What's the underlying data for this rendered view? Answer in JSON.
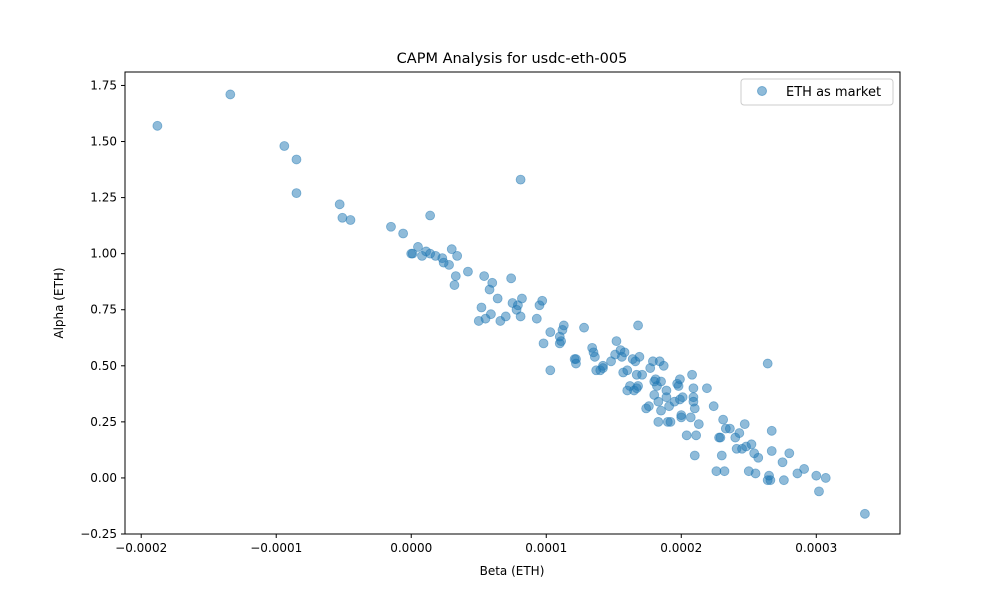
{
  "chart_data": {
    "type": "scatter",
    "title": "CAPM Analysis for usdc-eth-005",
    "xlabel": "Beta (ETH)",
    "ylabel": "Alpha (ETH)",
    "xlim": [
      -0.000212,
      0.000362
    ],
    "ylim": [
      -0.25,
      1.81
    ],
    "x_ticks": [
      -0.0002,
      -0.0001,
      0.0,
      0.0001,
      0.0002,
      0.0003
    ],
    "x_tick_labels": [
      "−0.0002",
      "−0.0001",
      "0.0000",
      "0.0001",
      "0.0002",
      "0.0003"
    ],
    "y_ticks": [
      -0.25,
      0.0,
      0.25,
      0.5,
      0.75,
      1.0,
      1.25,
      1.5,
      1.75
    ],
    "y_tick_labels": [
      "−0.25",
      "0.00",
      "0.25",
      "0.50",
      "0.75",
      "1.00",
      "1.25",
      "1.50",
      "1.75"
    ],
    "grid": false,
    "legend_position": "top-right",
    "series": [
      {
        "name": "ETH as market",
        "color": "#1f77b4",
        "alpha": 0.5,
        "points": [
          [
            -0.000188,
            1.57
          ],
          [
            -0.000134,
            1.71
          ],
          [
            -9.4e-05,
            1.48
          ],
          [
            -8.5e-05,
            1.42
          ],
          [
            -8.5e-05,
            1.27
          ],
          [
            -5.3e-05,
            1.22
          ],
          [
            -5.1e-05,
            1.16
          ],
          [
            -4.5e-05,
            1.15
          ],
          [
            -1.5e-05,
            1.12
          ],
          [
            -6e-06,
            1.09
          ],
          [
            1.4e-05,
            1.17
          ],
          [
            8.1e-05,
            1.33
          ],
          [
            0.0,
            1.0
          ],
          [
            1e-06,
            1.0
          ],
          [
            5e-06,
            1.03
          ],
          [
            8e-06,
            0.99
          ],
          [
            1.1e-05,
            1.01
          ],
          [
            1.4e-05,
            1.0
          ],
          [
            1.8e-05,
            0.99
          ],
          [
            2.3e-05,
            0.98
          ],
          [
            2.4e-05,
            0.96
          ],
          [
            2.8e-05,
            0.95
          ],
          [
            3e-05,
            1.02
          ],
          [
            3.4e-05,
            0.99
          ],
          [
            3.3e-05,
            0.9
          ],
          [
            3.2e-05,
            0.86
          ],
          [
            4.2e-05,
            0.92
          ],
          [
            5.4e-05,
            0.9
          ],
          [
            5.8e-05,
            0.84
          ],
          [
            6e-05,
            0.87
          ],
          [
            7.4e-05,
            0.89
          ],
          [
            6.4e-05,
            0.8
          ],
          [
            5.2e-05,
            0.76
          ],
          [
            5.9e-05,
            0.73
          ],
          [
            5.5e-05,
            0.71
          ],
          [
            5e-05,
            0.7
          ],
          [
            6.6e-05,
            0.7
          ],
          [
            7e-05,
            0.72
          ],
          [
            7.5e-05,
            0.78
          ],
          [
            7.8e-05,
            0.75
          ],
          [
            7.9e-05,
            0.77
          ],
          [
            8.2e-05,
            0.8
          ],
          [
            8.1e-05,
            0.72
          ],
          [
            9.3e-05,
            0.71
          ],
          [
            9.5e-05,
            0.77
          ],
          [
            9.7e-05,
            0.79
          ],
          [
            9.8e-05,
            0.6
          ],
          [
            0.000103,
            0.65
          ],
          [
            0.000103,
            0.48
          ],
          [
            0.00011,
            0.6
          ],
          [
            0.00011,
            0.63
          ],
          [
            0.000112,
            0.66
          ],
          [
            0.000113,
            0.68
          ],
          [
            0.000111,
            0.61
          ],
          [
            0.000121,
            0.53
          ],
          [
            0.000122,
            0.51
          ],
          [
            0.000122,
            0.53
          ],
          [
            0.000128,
            0.67
          ],
          [
            0.000134,
            0.58
          ],
          [
            0.000135,
            0.56
          ],
          [
            0.000136,
            0.54
          ],
          [
            0.000137,
            0.48
          ],
          [
            0.00014,
            0.48
          ],
          [
            0.000142,
            0.49
          ],
          [
            0.000142,
            0.5
          ],
          [
            0.000148,
            0.52
          ],
          [
            0.000151,
            0.55
          ],
          [
            0.000152,
            0.61
          ],
          [
            0.000155,
            0.57
          ],
          [
            0.000156,
            0.54
          ],
          [
            0.000157,
            0.47
          ],
          [
            0.000158,
            0.56
          ],
          [
            0.00016,
            0.48
          ],
          [
            0.00016,
            0.39
          ],
          [
            0.000162,
            0.41
          ],
          [
            0.000164,
            0.53
          ],
          [
            0.000166,
            0.52
          ],
          [
            0.000167,
            0.4
          ],
          [
            0.000165,
            0.39
          ],
          [
            0.000168,
            0.41
          ],
          [
            0.000168,
            0.68
          ],
          [
            0.000167,
            0.46
          ],
          [
            0.000169,
            0.54
          ],
          [
            0.000171,
            0.46
          ],
          [
            0.000174,
            0.31
          ],
          [
            0.000176,
            0.32
          ],
          [
            0.000177,
            0.49
          ],
          [
            0.000179,
            0.52
          ],
          [
            0.00018,
            0.43
          ],
          [
            0.00018,
            0.37
          ],
          [
            0.000181,
            0.44
          ],
          [
            0.000182,
            0.41
          ],
          [
            0.000183,
            0.34
          ],
          [
            0.000183,
            0.25
          ],
          [
            0.000184,
            0.52
          ],
          [
            0.000185,
            0.43
          ],
          [
            0.000185,
            0.3
          ],
          [
            0.000187,
            0.5
          ],
          [
            0.000189,
            0.39
          ],
          [
            0.000189,
            0.36
          ],
          [
            0.00019,
            0.25
          ],
          [
            0.000191,
            0.32
          ],
          [
            0.000192,
            0.25
          ],
          [
            0.000195,
            0.34
          ],
          [
            0.000197,
            0.42
          ],
          [
            0.000198,
            0.41
          ],
          [
            0.000199,
            0.44
          ],
          [
            0.000199,
            0.35
          ],
          [
            0.0002,
            0.28
          ],
          [
            0.0002,
            0.27
          ],
          [
            0.000201,
            0.36
          ],
          [
            0.000204,
            0.19
          ],
          [
            0.000207,
            0.27
          ],
          [
            0.000208,
            0.46
          ],
          [
            0.000209,
            0.4
          ],
          [
            0.000209,
            0.36
          ],
          [
            0.000209,
            0.34
          ],
          [
            0.00021,
            0.31
          ],
          [
            0.00021,
            0.1
          ],
          [
            0.000211,
            0.19
          ],
          [
            0.000213,
            0.24
          ],
          [
            0.000219,
            0.4
          ],
          [
            0.000224,
            0.32
          ],
          [
            0.000226,
            0.03
          ],
          [
            0.000228,
            0.18
          ],
          [
            0.000229,
            0.18
          ],
          [
            0.00023,
            0.1
          ],
          [
            0.000231,
            0.26
          ],
          [
            0.000232,
            0.03
          ],
          [
            0.000233,
            0.22
          ],
          [
            0.000236,
            0.22
          ],
          [
            0.00024,
            0.18
          ],
          [
            0.000241,
            0.13
          ],
          [
            0.000243,
            0.2
          ],
          [
            0.000245,
            0.13
          ],
          [
            0.000247,
            0.24
          ],
          [
            0.000248,
            0.14
          ],
          [
            0.00025,
            0.03
          ],
          [
            0.000252,
            0.15
          ],
          [
            0.000254,
            0.11
          ],
          [
            0.000255,
            0.02
          ],
          [
            0.000257,
            0.09
          ],
          [
            0.000264,
            0.51
          ],
          [
            0.000264,
            -0.01
          ],
          [
            0.000265,
            0.01
          ],
          [
            0.000266,
            -0.01
          ],
          [
            0.000267,
            0.12
          ],
          [
            0.000267,
            0.21
          ],
          [
            0.000275,
            0.07
          ],
          [
            0.000276,
            -0.01
          ],
          [
            0.00028,
            0.11
          ],
          [
            0.000286,
            0.02
          ],
          [
            0.000291,
            0.04
          ],
          [
            0.0003,
            0.01
          ],
          [
            0.000302,
            -0.06
          ],
          [
            0.000307,
            0.0
          ],
          [
            0.000336,
            -0.16
          ]
        ]
      }
    ]
  }
}
